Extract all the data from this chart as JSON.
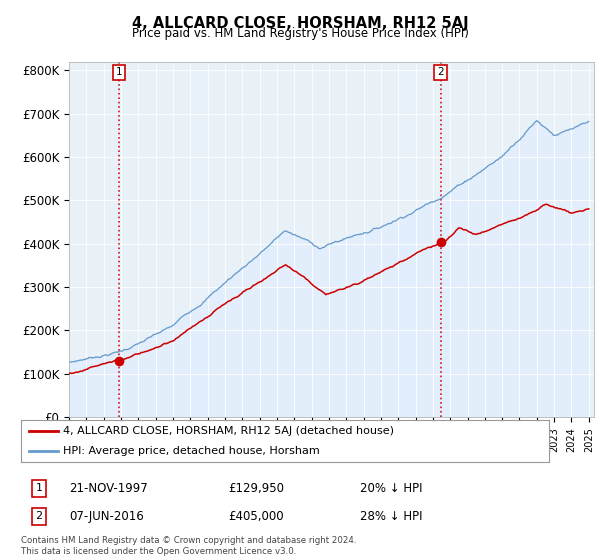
{
  "title": "4, ALLCARD CLOSE, HORSHAM, RH12 5AJ",
  "subtitle": "Price paid vs. HM Land Registry's House Price Index (HPI)",
  "ylabel_ticks": [
    "£0",
    "£100K",
    "£200K",
    "£300K",
    "£400K",
    "£500K",
    "£600K",
    "£700K",
    "£800K"
  ],
  "ytick_values": [
    0,
    100000,
    200000,
    300000,
    400000,
    500000,
    600000,
    700000,
    800000
  ],
  "ylim": [
    0,
    820000
  ],
  "sale1_date": "21-NOV-1997",
  "sale1_price": 129950,
  "sale1_label": "1",
  "sale1_hpi_diff": "20% ↓ HPI",
  "sale2_date": "07-JUN-2016",
  "sale2_price": 405000,
  "sale2_label": "2",
  "sale2_hpi_diff": "28% ↓ HPI",
  "legend_label_red": "4, ALLCARD CLOSE, HORSHAM, RH12 5AJ (detached house)",
  "legend_label_blue": "HPI: Average price, detached house, Horsham",
  "footer": "Contains HM Land Registry data © Crown copyright and database right 2024.\nThis data is licensed under the Open Government Licence v3.0.",
  "red_color": "#cc0000",
  "blue_color": "#6699cc",
  "blue_fill": "#ddeeff",
  "marker_color": "#cc0000",
  "dashed_color": "#cc0000",
  "grid_color": "#cccccc",
  "background_color": "#ffffff",
  "sale1_x": 1997.9,
  "sale2_x": 2016.45
}
